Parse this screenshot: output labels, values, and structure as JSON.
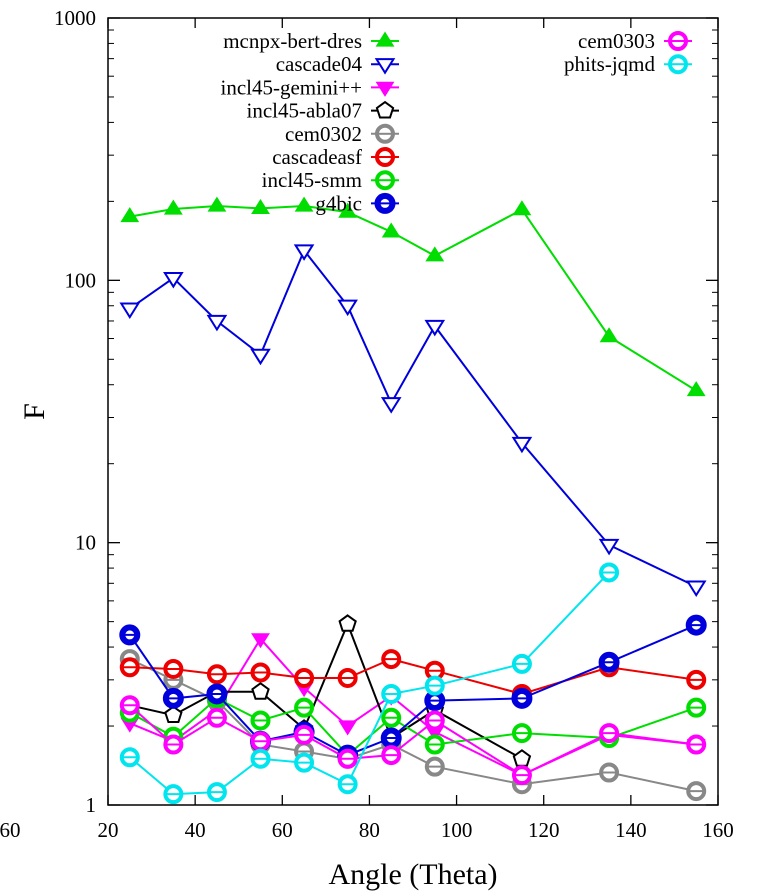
{
  "chart_data": {
    "type": "line",
    "title": "",
    "xlabel": "Angle (Theta)",
    "ylabel": "F",
    "xlim": [
      20,
      160
    ],
    "ylim": [
      1,
      1000
    ],
    "yscale": "log",
    "x_ticks": [
      20,
      40,
      60,
      80,
      100,
      120,
      140,
      160
    ],
    "x_tick_labels": [
      "20",
      "40",
      "60",
      "80",
      "100",
      "120",
      "140",
      "160"
    ],
    "x_partial_tick_label": "60",
    "y_ticks": [
      1,
      10,
      100,
      1000
    ],
    "y_tick_labels": [
      "1",
      "10",
      "100",
      "1000"
    ],
    "grid": false,
    "legend_position": "top",
    "series": [
      {
        "name": "mcnpx-bert-dres",
        "color": "#00dd00",
        "marker": "triangle-up-filled",
        "points": [
          [
            25,
            175
          ],
          [
            35,
            187
          ],
          [
            45,
            192
          ],
          [
            55,
            188
          ],
          [
            65,
            192
          ],
          [
            75,
            182
          ],
          [
            85,
            153
          ],
          [
            95,
            124
          ],
          [
            115,
            186
          ],
          [
            135,
            61
          ],
          [
            155,
            38
          ]
        ]
      },
      {
        "name": "cascade04",
        "color": "#0000dd",
        "marker": "triangle-down-open",
        "points": [
          [
            25,
            78
          ],
          [
            35,
            102
          ],
          [
            45,
            70
          ],
          [
            55,
            52
          ],
          [
            65,
            130
          ],
          [
            75,
            80
          ],
          [
            85,
            34
          ],
          [
            95,
            67
          ],
          [
            115,
            24
          ],
          [
            135,
            9.8
          ],
          [
            155,
            6.8
          ]
        ]
      },
      {
        "name": "incl45-gemini++",
        "color": "#ff00ff",
        "marker": "triangle-down-filled",
        "points": [
          [
            25,
            2.05
          ],
          [
            35,
            1.75
          ],
          [
            45,
            2.3
          ],
          [
            55,
            4.3
          ],
          [
            65,
            2.8
          ],
          [
            75,
            2.0
          ],
          [
            85,
            2.6
          ],
          [
            95,
            1.9
          ],
          [
            115,
            1.3
          ],
          [
            135,
            1.85
          ],
          [
            155,
            1.7
          ]
        ]
      },
      {
        "name": "incl45-abla07",
        "color": "#000000",
        "marker": "pentagon-open",
        "points": [
          [
            25,
            2.4
          ],
          [
            35,
            2.2
          ],
          [
            45,
            2.7
          ],
          [
            55,
            2.7
          ],
          [
            65,
            1.95
          ],
          [
            75,
            4.9
          ],
          [
            85,
            1.8
          ],
          [
            95,
            2.3
          ],
          [
            115,
            1.5
          ]
        ]
      },
      {
        "name": "cem0302",
        "color": "#888888",
        "marker": "circle-ring",
        "points": [
          [
            25,
            3.6
          ],
          [
            35,
            3.0
          ],
          [
            45,
            2.5
          ],
          [
            55,
            1.7
          ],
          [
            65,
            1.6
          ],
          [
            75,
            1.5
          ],
          [
            85,
            1.7
          ],
          [
            95,
            1.4
          ],
          [
            115,
            1.2
          ],
          [
            135,
            1.33
          ],
          [
            155,
            1.13
          ]
        ]
      },
      {
        "name": "cascadeasf",
        "color": "#ee0000",
        "marker": "circle-ring",
        "points": [
          [
            25,
            3.35
          ],
          [
            35,
            3.3
          ],
          [
            45,
            3.15
          ],
          [
            55,
            3.2
          ],
          [
            65,
            3.05
          ],
          [
            75,
            3.05
          ],
          [
            85,
            3.6
          ],
          [
            95,
            3.25
          ],
          [
            115,
            2.65
          ],
          [
            135,
            3.35
          ],
          [
            155,
            3.0
          ]
        ]
      },
      {
        "name": "incl45-smm",
        "color": "#00dd00",
        "marker": "circle-ring",
        "points": [
          [
            25,
            2.25
          ],
          [
            35,
            1.82
          ],
          [
            45,
            2.55
          ],
          [
            55,
            2.1
          ],
          [
            65,
            2.35
          ],
          [
            75,
            1.55
          ],
          [
            85,
            2.15
          ],
          [
            95,
            1.7
          ],
          [
            115,
            1.88
          ],
          [
            135,
            1.8
          ],
          [
            155,
            2.35
          ]
        ]
      },
      {
        "name": "g4bic",
        "color": "#0000dd",
        "marker": "circle-ring-filled",
        "points": [
          [
            25,
            4.45
          ],
          [
            35,
            2.55
          ],
          [
            45,
            2.65
          ],
          [
            55,
            1.75
          ],
          [
            65,
            1.9
          ],
          [
            75,
            1.55
          ],
          [
            85,
            1.8
          ],
          [
            95,
            2.5
          ],
          [
            115,
            2.55
          ],
          [
            135,
            3.5
          ],
          [
            155,
            4.85
          ]
        ]
      },
      {
        "name": "cem0303",
        "color": "#ff00ff",
        "marker": "circle-ring",
        "points": [
          [
            25,
            2.4
          ],
          [
            35,
            1.7
          ],
          [
            45,
            2.15
          ],
          [
            55,
            1.75
          ],
          [
            65,
            1.85
          ],
          [
            75,
            1.5
          ],
          [
            85,
            1.55
          ],
          [
            95,
            2.1
          ],
          [
            115,
            1.3
          ],
          [
            135,
            1.88
          ],
          [
            155,
            1.7
          ]
        ]
      },
      {
        "name": "phits-jqmd",
        "color": "#00e5ee",
        "marker": "circle-ring",
        "points": [
          [
            25,
            1.52
          ],
          [
            35,
            1.1
          ],
          [
            45,
            1.12
          ],
          [
            55,
            1.5
          ],
          [
            65,
            1.45
          ],
          [
            75,
            1.2
          ],
          [
            85,
            2.65
          ],
          [
            95,
            2.85
          ],
          [
            115,
            3.45
          ],
          [
            135,
            7.7
          ]
        ]
      }
    ]
  }
}
